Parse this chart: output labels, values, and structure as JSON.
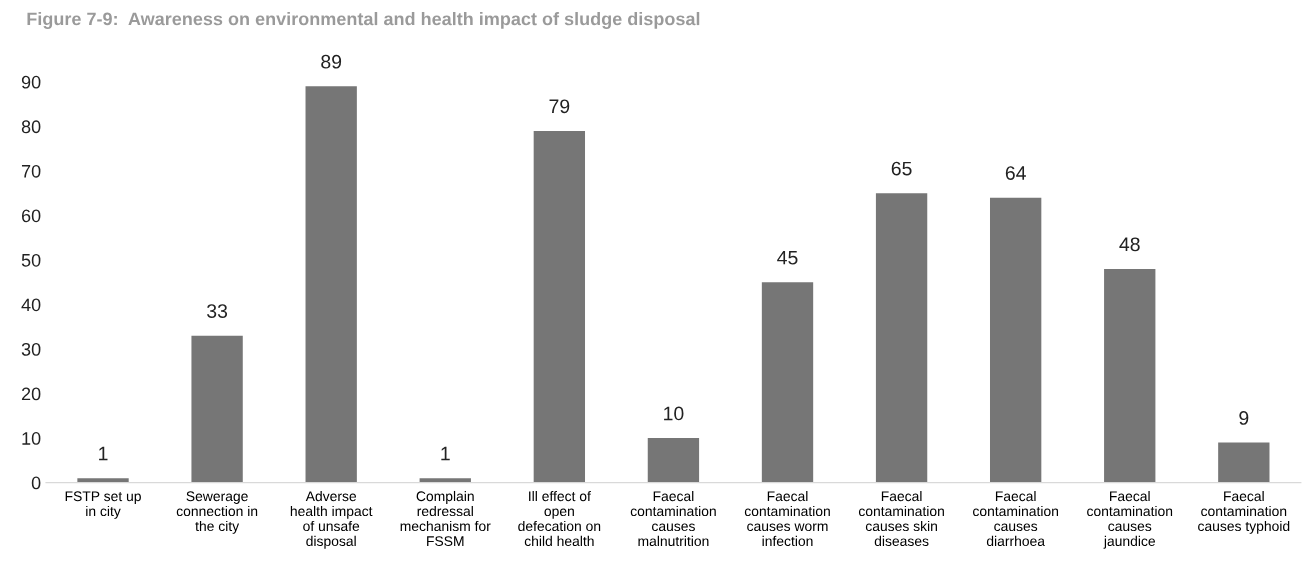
{
  "chart_data": {
    "type": "bar",
    "title": "Figure 7-9:  Awareness on environmental and health impact of sludge disposal",
    "categories": [
      "FSTP set up\nin city",
      "Sewerage\nconnection in\nthe city",
      "Adverse\nhealth impact\nof unsafe\ndisposal",
      "Complain\nredressal\nmechanism for\nFSSM",
      "Ill effect of\nopen\ndefecation on\nchild health",
      "Faecal\ncontamination\ncauses\nmalnutrition",
      "Faecal\ncontamination\ncauses worm\ninfection",
      "Faecal\ncontamination\ncauses skin\ndiseases",
      "Faecal\ncontamination\ncauses\ndiarrhoea",
      "Faecal\ncontamination\ncauses\njaundice",
      "Faecal\ncontamination\ncauses typhoid"
    ],
    "values": [
      1,
      33,
      89,
      1,
      79,
      10,
      45,
      65,
      64,
      48,
      9
    ],
    "color": "#767676",
    "ylim": [
      0,
      90
    ],
    "yticks": [
      0,
      10,
      20,
      30,
      40,
      50,
      60,
      70,
      80,
      90
    ],
    "data_labels": true,
    "grid": false,
    "legend": false
  }
}
